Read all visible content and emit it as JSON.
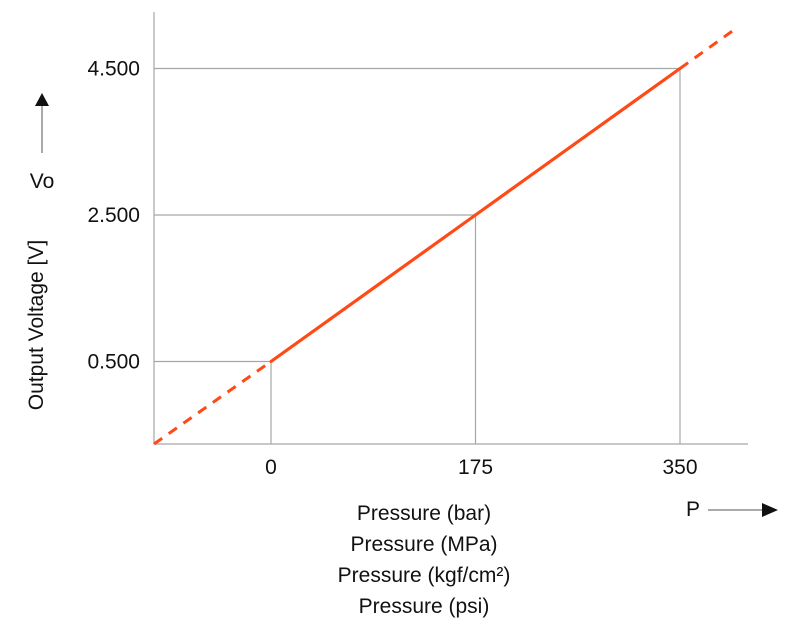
{
  "chart_data": {
    "type": "line",
    "title": "",
    "xlabel": "",
    "ylabel": "Output Voltage [V]",
    "y_symbol": "Vo",
    "x_symbol": "P",
    "x_axis_lines": [
      "Pressure (bar)",
      "Pressure (MPa)",
      "Pressure (kgf/cm²)",
      "Pressure (psi)"
    ],
    "x_ticks": [
      {
        "value": 0,
        "label": "0"
      },
      {
        "value": 175,
        "label": "175"
      },
      {
        "value": 350,
        "label": "350"
      }
    ],
    "y_ticks": [
      {
        "value": 0.5,
        "label": "0.500"
      },
      {
        "value": 2.5,
        "label": "2.500"
      },
      {
        "value": 4.5,
        "label": "4.500"
      }
    ],
    "xlim": [
      -100,
      400
    ],
    "ylim": [
      -0.625,
      5.0
    ],
    "series": [
      {
        "points": [
          [
            0,
            0.5
          ],
          [
            175,
            2.5
          ],
          [
            350,
            4.5
          ]
        ],
        "style": "solid",
        "color": "#ff4a17"
      }
    ],
    "extrapolation": {
      "style": "dashed",
      "color": "#ff4a17",
      "below": [
        [
          -100,
          -0.643
        ],
        [
          0,
          0.5
        ]
      ],
      "above": [
        [
          350,
          4.5
        ],
        [
          400,
          5.071
        ]
      ]
    },
    "guide_lines": true,
    "grid": false
  }
}
